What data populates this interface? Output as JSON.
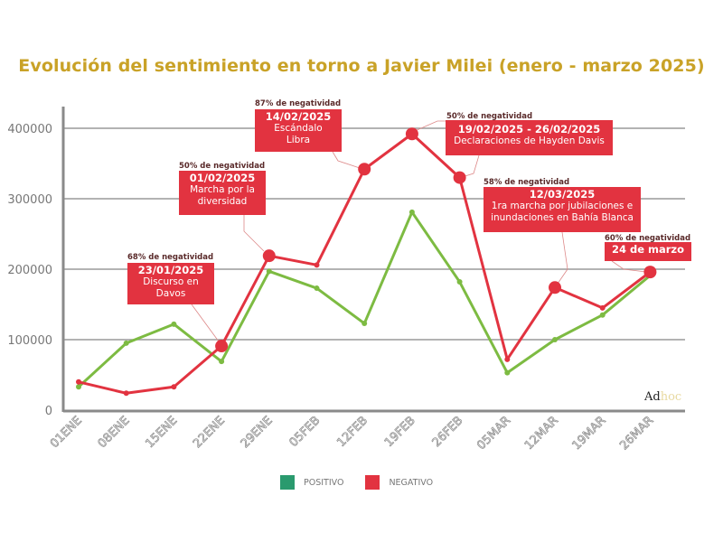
{
  "chart_data": {
    "type": "line",
    "title": "Evolución del sentimiento en torno a Javier Milei (enero - marzo 2025)",
    "categories": [
      "01ENE",
      "08ENE",
      "15ENE",
      "22ENE",
      "29ENE",
      "05FEB",
      "12FEB",
      "19FEB",
      "26FEB",
      "05MAR",
      "12MAR",
      "19MAR",
      "26MAR"
    ],
    "ylim": [
      0,
      400000
    ],
    "yticks": [
      "0",
      "100000",
      "200000",
      "300000",
      "400000"
    ],
    "grid": true,
    "legend_position": "bottom",
    "series": [
      {
        "name": "POSITIVO",
        "color": "#7dbb42",
        "legend_color": "#2a9a6e",
        "values": [
          33000,
          95000,
          122000,
          69000,
          197000,
          173000,
          123000,
          281000,
          182000,
          53000,
          100000,
          135000,
          191000
        ]
      },
      {
        "name": "NEGATIVO",
        "color": "#e23340",
        "legend_color": "#e23340",
        "values": [
          40000,
          24000,
          33000,
          91000,
          219000,
          206000,
          342000,
          392000,
          330000,
          72000,
          174000,
          145000,
          196000
        ]
      }
    ],
    "annotations": [
      {
        "pct": "68% de negatividad",
        "date": "23/01/2025",
        "lines": [
          "Discurso en",
          "Davos"
        ]
      },
      {
        "pct": "50% de negatividad",
        "date": "01/02/2025",
        "lines": [
          "Marcha por la",
          "diversidad"
        ]
      },
      {
        "pct": "87% de negatividad",
        "date": "14/02/2025",
        "lines": [
          "Escándalo",
          "Libra"
        ]
      },
      {
        "pct": "50% de negatividad",
        "date": "19/02/2025 - 26/02/2025",
        "lines": [
          "Declaraciones de Hayden Davis"
        ]
      },
      {
        "pct": "58% de negatividad",
        "date": "12/03/2025",
        "lines": [
          "1ra marcha por jubilaciones e",
          "inundaciones en Bahía Blanca"
        ]
      },
      {
        "pct": "60% de negatividad",
        "date": "24 de marzo",
        "lines": []
      }
    ],
    "highlighted_points": [
      "22ENE",
      "29ENE",
      "12FEB",
      "19FEB",
      "26FEB",
      "12MAR",
      "26MAR"
    ]
  },
  "logo": {
    "part1": "Ad",
    "part2": "hoc"
  },
  "colors": {
    "title": "#c9a227",
    "axis": "#8a8a8a",
    "grid": "#9a9a9a"
  }
}
